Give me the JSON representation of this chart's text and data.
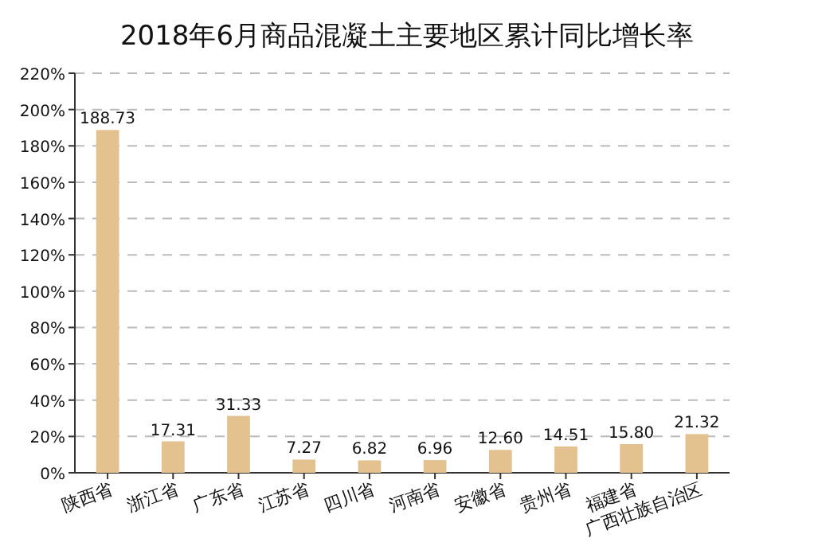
{
  "chart_data": {
    "type": "bar",
    "title": "2018年6月商品混凝土主要地区累计同比增长率",
    "categories": [
      "陕西省",
      "浙江省",
      "广东省",
      "江苏省",
      "四川省",
      "河南省",
      "安徽省",
      "贵州省",
      "福建省",
      "广西壮族自治区"
    ],
    "values": [
      188.73,
      17.31,
      31.33,
      7.27,
      6.82,
      6.96,
      12.6,
      14.51,
      15.8,
      21.32
    ],
    "value_labels": [
      "188.73",
      "17.31",
      "31.33",
      "7.27",
      "6.82",
      "6.96",
      "12.60",
      "14.51",
      "15.80",
      "21.32"
    ],
    "color": "#e3c28f",
    "ylim": [
      0,
      220
    ],
    "yticks": [
      {
        "value": 0,
        "label": "0%"
      },
      {
        "value": 20,
        "label": "20%"
      },
      {
        "value": 40,
        "label": "40%"
      },
      {
        "value": 60,
        "label": "60%"
      },
      {
        "value": 80,
        "label": "80%"
      },
      {
        "value": 100,
        "label": "100%"
      },
      {
        "value": 120,
        "label": "120%"
      },
      {
        "value": 140,
        "label": "140%"
      },
      {
        "value": 160,
        "label": "160%"
      },
      {
        "value": 180,
        "label": "180%"
      },
      {
        "value": 200,
        "label": "200%"
      },
      {
        "value": 220,
        "label": "220%"
      }
    ],
    "grid": "y"
  }
}
